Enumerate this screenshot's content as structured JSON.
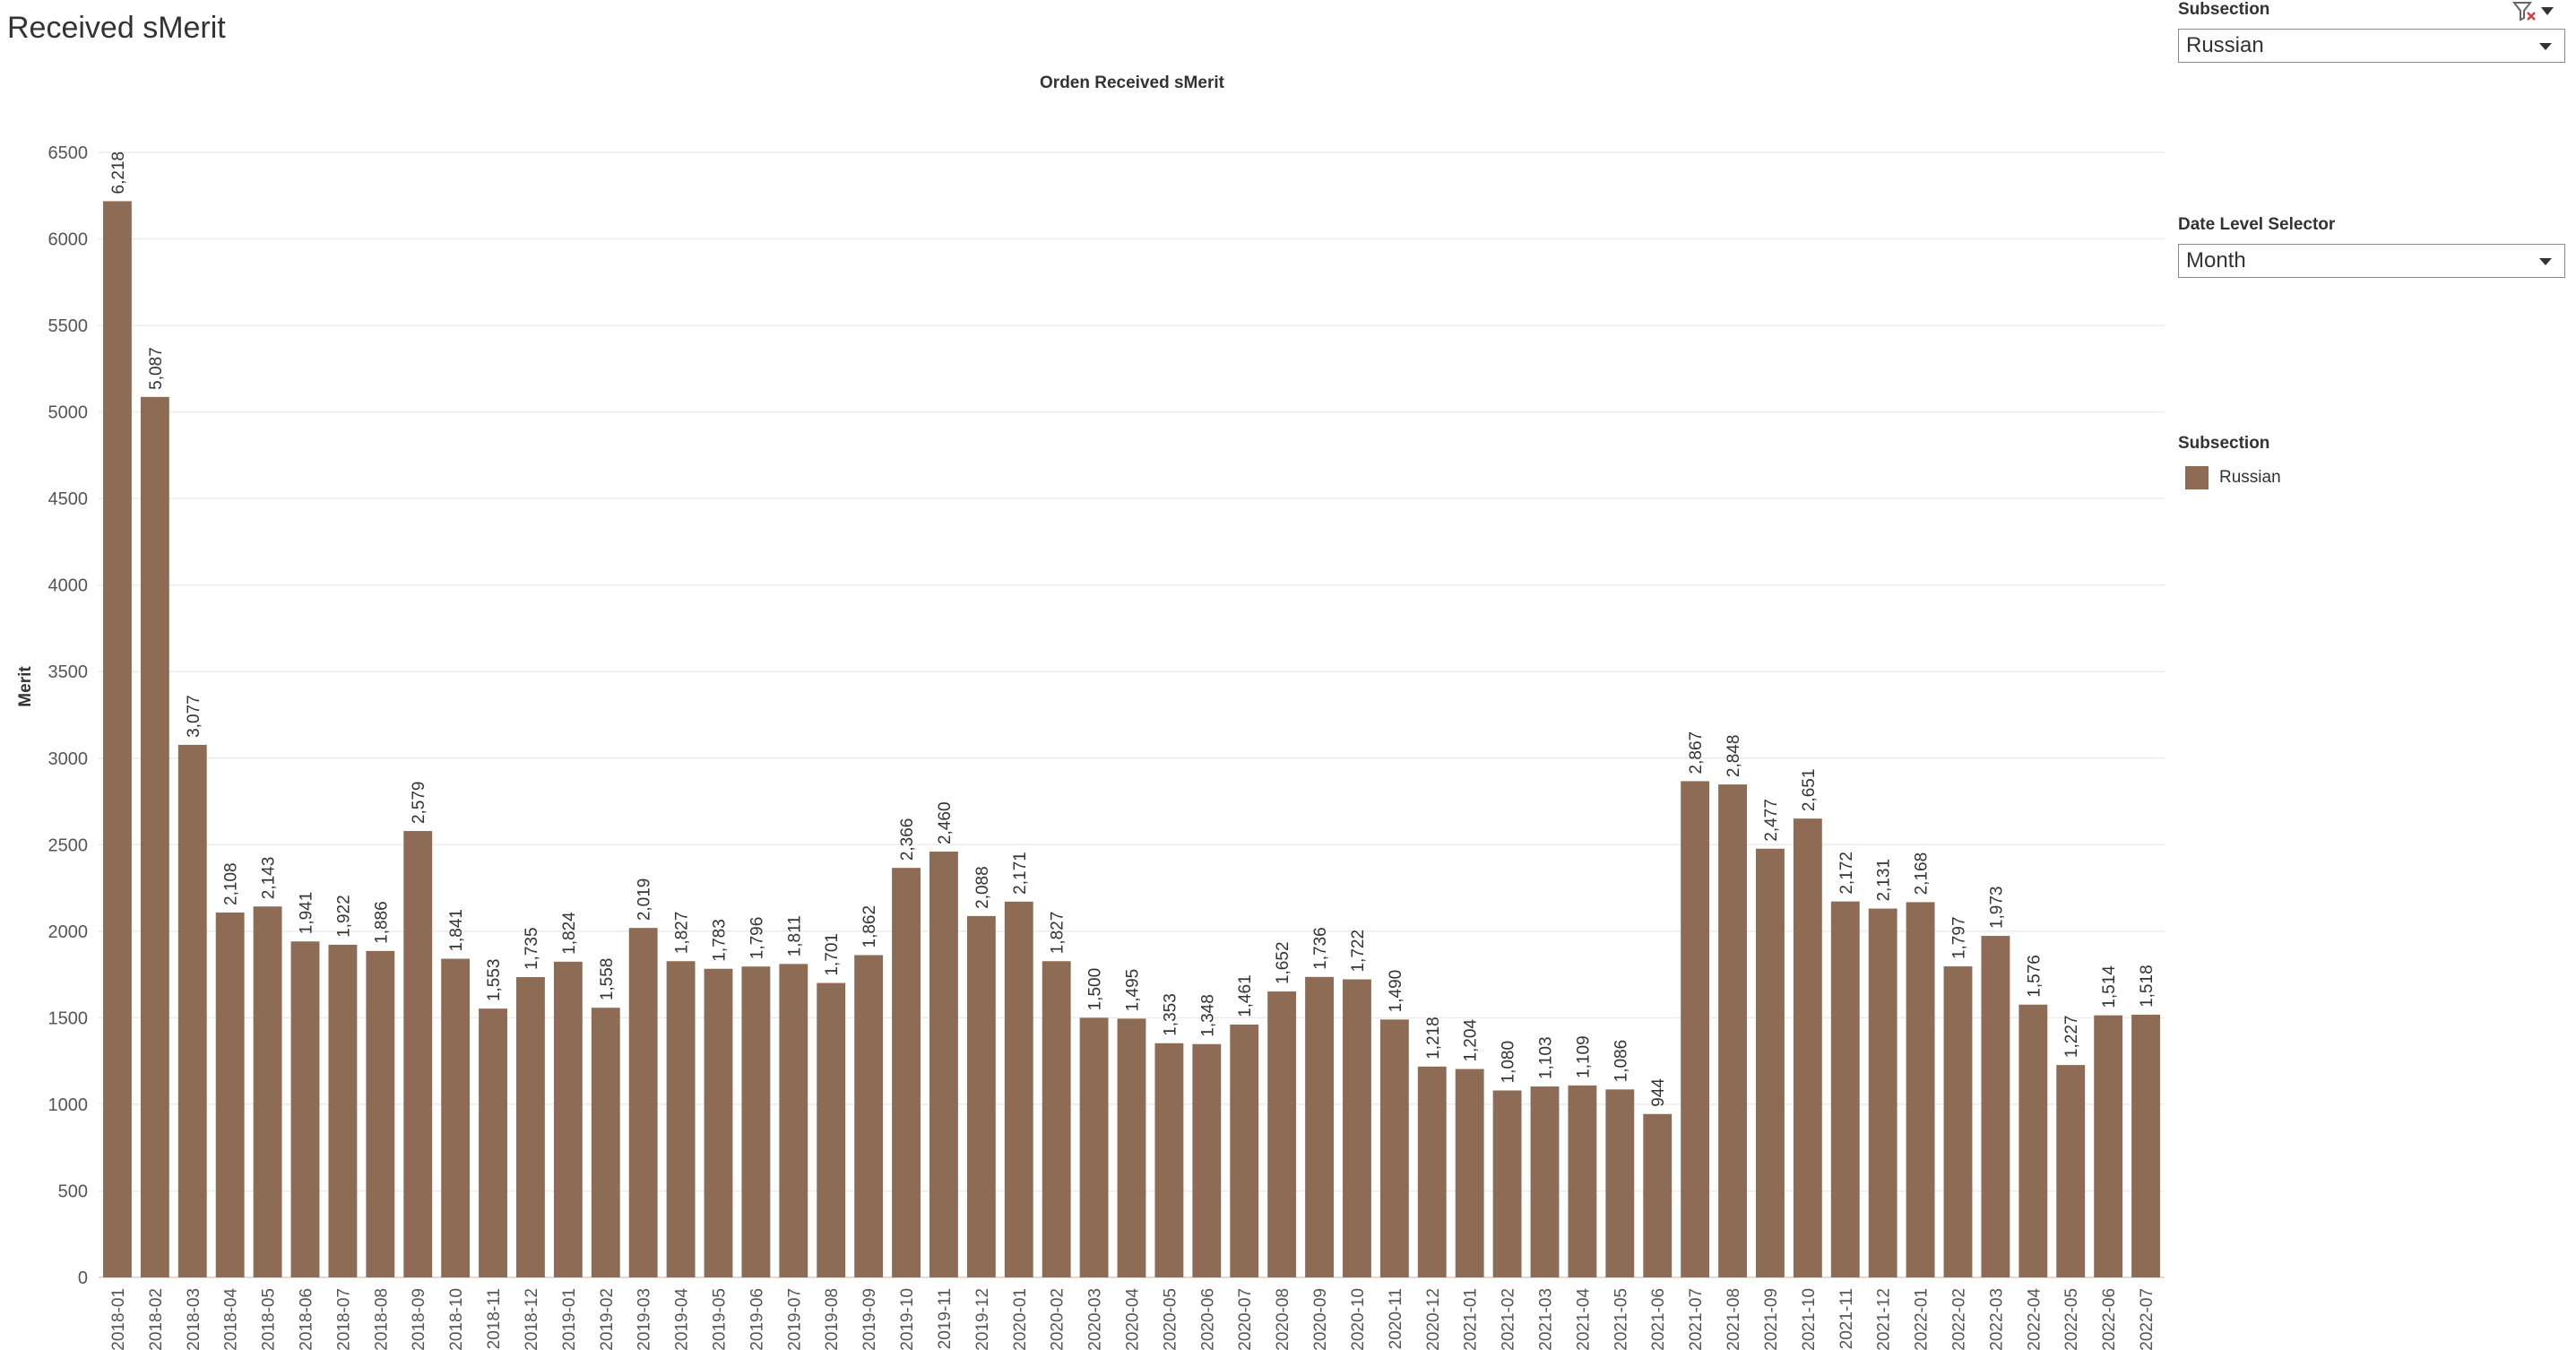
{
  "page_title": "Received sMerit",
  "filters": {
    "subsection": {
      "label": "Subsection",
      "value": "Russian"
    },
    "date_level": {
      "label": "Date Level Selector",
      "value": "Month"
    }
  },
  "legend": {
    "title": "Subsection",
    "items": [
      {
        "label": "Russian",
        "color": "#8d6b55"
      }
    ]
  },
  "chart_data": {
    "type": "bar",
    "title": "Orden Received sMerit",
    "xlabel": "",
    "ylabel": "Merit",
    "ylim": [
      0,
      6500
    ],
    "yticks": [
      0,
      500,
      1000,
      1500,
      2000,
      2500,
      3000,
      3500,
      4000,
      4500,
      5000,
      5500,
      6000,
      6500
    ],
    "grid": true,
    "bar_color": "#8d6b55",
    "categories": [
      "2018-01",
      "2018-02",
      "2018-03",
      "2018-04",
      "2018-05",
      "2018-06",
      "2018-07",
      "2018-08",
      "2018-09",
      "2018-10",
      "2018-11",
      "2018-12",
      "2019-01",
      "2019-02",
      "2019-03",
      "2019-04",
      "2019-05",
      "2019-06",
      "2019-07",
      "2019-08",
      "2019-09",
      "2019-10",
      "2019-11",
      "2019-12",
      "2020-01",
      "2020-02",
      "2020-03",
      "2020-04",
      "2020-05",
      "2020-06",
      "2020-07",
      "2020-08",
      "2020-09",
      "2020-10",
      "2020-11",
      "2020-12",
      "2021-01",
      "2021-02",
      "2021-03",
      "2021-04",
      "2021-05",
      "2021-06",
      "2021-07",
      "2021-08",
      "2021-09",
      "2021-10",
      "2021-11",
      "2021-12",
      "2022-01",
      "2022-02",
      "2022-03",
      "2022-04",
      "2022-05",
      "2022-06",
      "2022-07"
    ],
    "values": [
      6218,
      5087,
      3077,
      2108,
      2143,
      1941,
      1922,
      1886,
      2579,
      1841,
      1553,
      1735,
      1824,
      1558,
      2019,
      1827,
      1783,
      1796,
      1811,
      1701,
      1862,
      2366,
      2460,
      2088,
      2171,
      1827,
      1500,
      1495,
      1353,
      1348,
      1461,
      1652,
      1736,
      1722,
      1490,
      1218,
      1204,
      1080,
      1103,
      1109,
      1086,
      944,
      2867,
      2848,
      2477,
      2651,
      2172,
      2131,
      2168,
      1797,
      1973,
      1576,
      1227,
      1514,
      1518
    ],
    "data_labels": [
      "6,218",
      "5,087",
      "3,077",
      "2,108",
      "2,143",
      "1,941",
      "1,922",
      "1,886",
      "2,579",
      "1,841",
      "1,553",
      "1,735",
      "1,824",
      "1,558",
      "2,019",
      "1,827",
      "1,783",
      "1,796",
      "1,811",
      "1,701",
      "1,862",
      "2,366",
      "2,460",
      "2,088",
      "2,171",
      "1,827",
      "1,500",
      "1,495",
      "1,353",
      "1,348",
      "1,461",
      "1,652",
      "1,736",
      "1,722",
      "1,490",
      "1,218",
      "1,204",
      "1,080",
      "1,103",
      "1,109",
      "1,086",
      "944",
      "2,867",
      "2,848",
      "2,477",
      "2,651",
      "2,172",
      "2,131",
      "2,168",
      "1,797",
      "1,973",
      "1,576",
      "1,227",
      "1,514",
      "1,518"
    ]
  }
}
